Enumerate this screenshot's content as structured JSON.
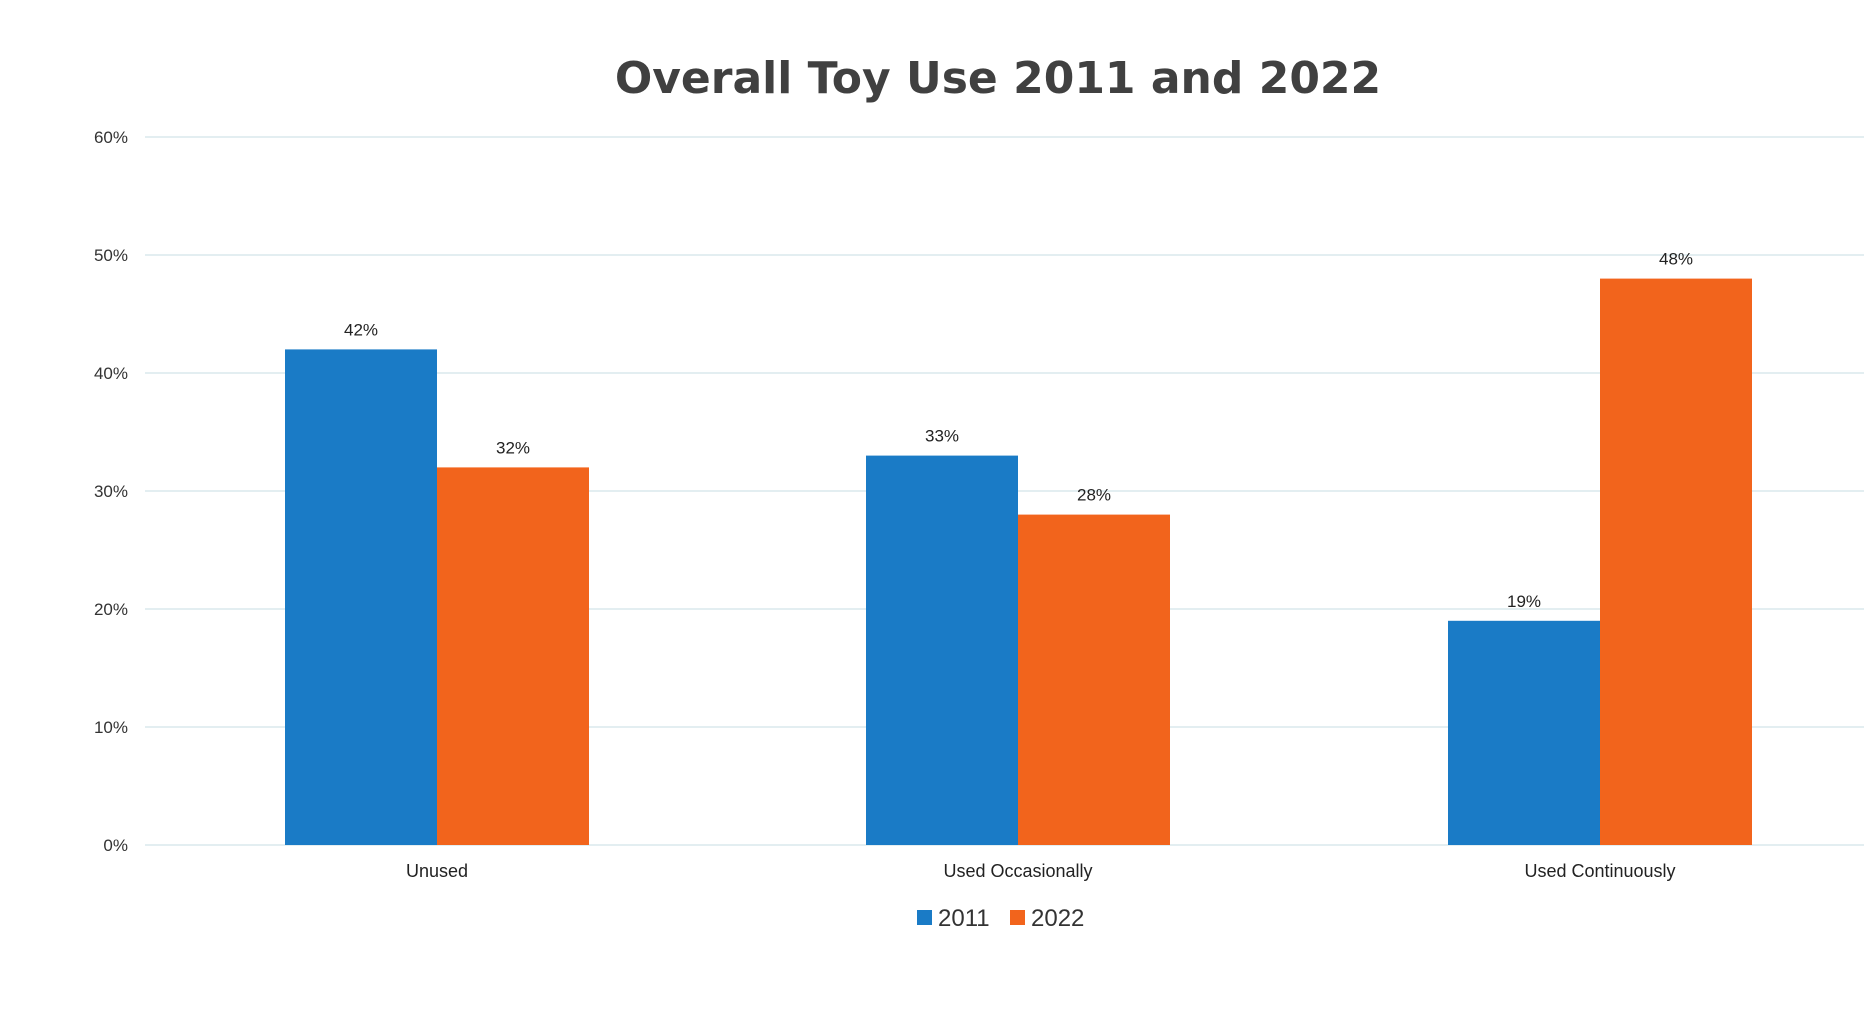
{
  "chart_data": {
    "type": "bar",
    "title": "Overall Toy Use 2011 and 2022",
    "xlabel": "",
    "ylabel": "",
    "categories": [
      "Unused",
      "Used Occasionally",
      "Used Continuously"
    ],
    "series": [
      {
        "name": "2011",
        "values": [
          42,
          33,
          19
        ],
        "color": "#1a7bc6"
      },
      {
        "name": "2022",
        "values": [
          32,
          28,
          48
        ],
        "color": "#f2641c"
      }
    ],
    "data_labels": [
      [
        "42%",
        "33%",
        "19%"
      ],
      [
        "32%",
        "28%",
        "48%"
      ]
    ],
    "ylim": [
      0,
      60
    ],
    "yticks": [
      "0%",
      "10%",
      "20%",
      "30%",
      "40%",
      "50%",
      "60%"
    ],
    "grid": true,
    "legend_position": "bottom"
  }
}
